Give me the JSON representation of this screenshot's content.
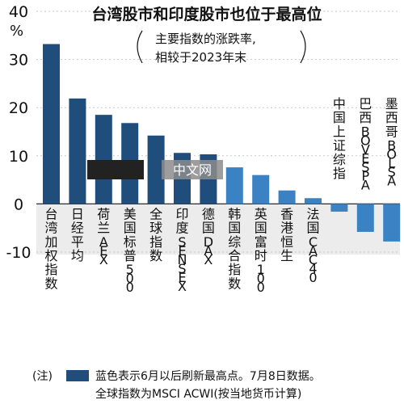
{
  "chart_data": {
    "type": "bar",
    "title": "台湾股市和印度股市也位于最高位",
    "subtitle_lines": [
      "主要指数的涨跌率,",
      "相较于2023年末"
    ],
    "ylabel": "%",
    "ylim": [
      -10,
      40
    ],
    "yticks": [
      -10,
      0,
      10,
      20,
      30,
      40
    ],
    "categories": [
      "台湾加权指数",
      "日经平均",
      "荷兰AEX",
      "美国标普500",
      "全球指数",
      "印度SENSEX",
      "德国DAX",
      "韩国综合指数",
      "英国富时100",
      "香港恒生",
      "法国CAC40",
      "中国上证综指",
      "巴西BOVESPA",
      "墨西哥BOLSA"
    ],
    "values": [
      33.2,
      21.9,
      18.5,
      16.8,
      14.2,
      10.6,
      10.3,
      7.6,
      6.0,
      2.8,
      1.2,
      -1.6,
      -5.8,
      -7.8
    ],
    "record_high": [
      true,
      true,
      true,
      true,
      true,
      true,
      true,
      false,
      false,
      false,
      false,
      false,
      false,
      false
    ],
    "colors": {
      "record_high": "#1f4e7d",
      "other": "#3b82c4",
      "negative_zone": "#ececec"
    },
    "legend_label": "蓝色表示6月以后刷新最高点。7月8日数据。",
    "notes": [
      "(注)",
      "全球指数为MSCI ACWI(按当地货币计算)"
    ],
    "watermark": "中文网"
  }
}
